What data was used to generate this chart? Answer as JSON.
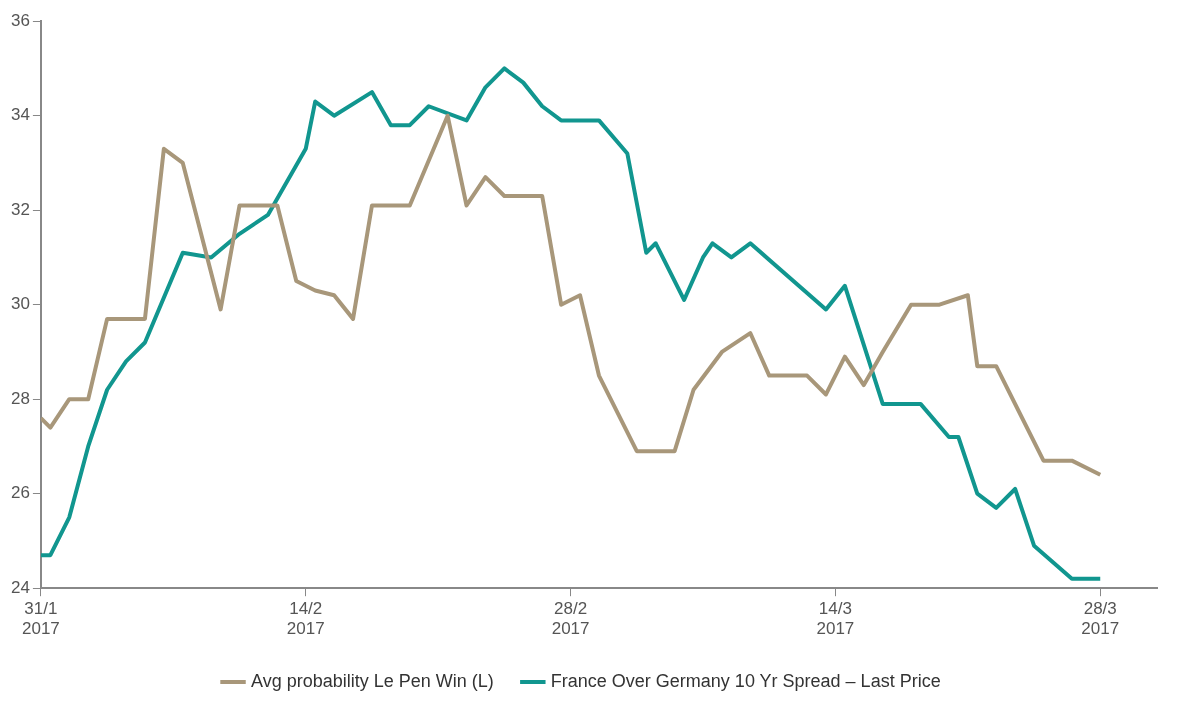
{
  "chart_data": {
    "type": "line",
    "xlim": [
      "2017-01-31",
      "2017-03-31"
    ],
    "xticks": [
      {
        "value": "2017-01-31",
        "label": "31/1\n2017"
      },
      {
        "value": "2017-02-14",
        "label": "14/2\n2017"
      },
      {
        "value": "2017-02-28",
        "label": "28/2\n2017"
      },
      {
        "value": "2017-03-14",
        "label": "14/3\n2017"
      },
      {
        "value": "2017-03-28",
        "label": "28/3\n2017"
      }
    ],
    "ylim": [
      24,
      36
    ],
    "yticks": [
      24,
      26,
      28,
      30,
      32,
      34,
      36
    ],
    "grid": false,
    "legend": "bottom",
    "marker": "none",
    "line_style": "solid",
    "series": [
      {
        "name": "Avg probability Le Pen Win (L)",
        "color": "#a8977a",
        "x": [
          "2017-01-31",
          "2017-01-31T12:00",
          "2017-02-01T12:00",
          "2017-02-02T12:00",
          "2017-02-03T12:00",
          "2017-02-05T12:00",
          "2017-02-06T12:00",
          "2017-02-07T12:00",
          "2017-02-09T12:00",
          "2017-02-10T12:00",
          "2017-02-12",
          "2017-02-12T12:00",
          "2017-02-13T12:00",
          "2017-02-14T12:00",
          "2017-02-15T12:00",
          "2017-02-16T12:00",
          "2017-02-17T12:00",
          "2017-02-19T12:00",
          "2017-02-21T12:00",
          "2017-02-22T12:00",
          "2017-02-23T12:00",
          "2017-02-24T12:00",
          "2017-02-26T12:00",
          "2017-02-27T12:00",
          "2017-02-28T12:00",
          "2017-03-01T12:00",
          "2017-03-03T12:00",
          "2017-03-05T12:00",
          "2017-03-06T12:00",
          "2017-03-08",
          "2017-03-09T12:00",
          "2017-03-10T12:00",
          "2017-03-12T12:00",
          "2017-03-13T12:00",
          "2017-03-14T12:00",
          "2017-03-15T12:00",
          "2017-03-16T12:00",
          "2017-03-18",
          "2017-03-19T12:00",
          "2017-03-21",
          "2017-03-21T12:00",
          "2017-03-22T12:00",
          "2017-03-25",
          "2017-03-26T12:00",
          "2017-03-28"
        ],
        "values": [
          27.6,
          27.4,
          28.0,
          28.0,
          29.7,
          29.7,
          33.3,
          33.0,
          29.9,
          32.1,
          32.1,
          32.1,
          30.5,
          30.3,
          30.2,
          29.7,
          32.1,
          32.1,
          34.0,
          32.1,
          32.7,
          32.3,
          32.3,
          30.0,
          30.2,
          28.5,
          26.9,
          26.9,
          28.2,
          29.0,
          29.4,
          28.5,
          28.5,
          28.1,
          28.9,
          28.3,
          29.0,
          30.0,
          30.0,
          30.2,
          28.7,
          28.7,
          26.7,
          26.7,
          26.4
        ]
      },
      {
        "name": "France Over Germany 10 Yr Spread – Last Price",
        "color": "#11968f",
        "x": [
          "2017-01-31",
          "2017-01-31T12:00",
          "2017-02-01T12:00",
          "2017-02-02T12:00",
          "2017-02-03T12:00",
          "2017-02-04T12:00",
          "2017-02-05T12:00",
          "2017-02-07T12:00",
          "2017-02-09",
          "2017-02-10T12:00",
          "2017-02-12",
          "2017-02-14",
          "2017-02-14T12:00",
          "2017-02-15T12:00",
          "2017-02-17T12:00",
          "2017-02-18T12:00",
          "2017-02-19T12:00",
          "2017-02-20T12:00",
          "2017-02-22T12:00",
          "2017-02-23T12:00",
          "2017-02-24T12:00",
          "2017-02-25T12:00",
          "2017-02-26T12:00",
          "2017-02-27T12:00",
          "2017-03-01T12:00",
          "2017-03-03",
          "2017-03-04",
          "2017-03-04T12:00",
          "2017-03-06",
          "2017-03-07",
          "2017-03-07T12:00",
          "2017-03-08T12:00",
          "2017-03-09T12:00",
          "2017-03-13T12:00",
          "2017-03-14T12:00",
          "2017-03-16T12:00",
          "2017-03-18T12:00",
          "2017-03-20",
          "2017-03-20T12:00",
          "2017-03-21T12:00",
          "2017-03-22T12:00",
          "2017-03-23T12:00",
          "2017-03-24T12:00",
          "2017-03-26T12:00",
          "2017-03-28"
        ],
        "values": [
          24.7,
          24.7,
          25.5,
          27.0,
          28.2,
          28.8,
          29.2,
          31.1,
          31.0,
          31.5,
          31.9,
          33.3,
          34.3,
          34.0,
          34.5,
          33.8,
          33.8,
          34.2,
          33.9,
          34.6,
          35.0,
          34.7,
          34.2,
          33.9,
          33.9,
          33.2,
          31.1,
          31.3,
          30.1,
          31.0,
          31.3,
          31.0,
          31.3,
          29.9,
          30.4,
          27.9,
          27.9,
          27.2,
          27.2,
          26.0,
          25.7,
          26.1,
          24.9,
          24.2,
          24.2
        ]
      }
    ]
  }
}
